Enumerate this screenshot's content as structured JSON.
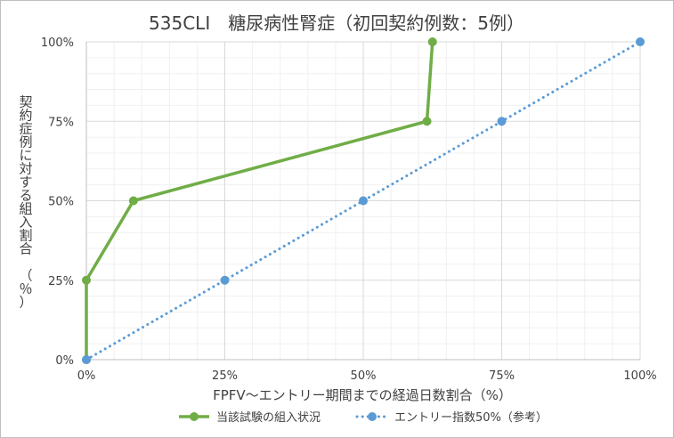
{
  "chart_data": {
    "type": "line",
    "title": "535CLI　糖尿病性腎症（初回契約例数：5例）",
    "xlabel": "FPFV～エントリー期間までの経過日数割合（%）",
    "ylabel": "契約症例に対する組入割合　（％）",
    "xlim": [
      0,
      100
    ],
    "ylim": [
      0,
      100
    ],
    "x_ticks": [
      0,
      25,
      50,
      75,
      100
    ],
    "y_ticks": [
      0,
      25,
      50,
      75,
      100
    ],
    "x_tick_labels": [
      "0%",
      "25%",
      "50%",
      "75%",
      "100%"
    ],
    "y_tick_labels": [
      "0%",
      "25%",
      "50%",
      "75%",
      "100%"
    ],
    "grid": true,
    "legend_position": "bottom",
    "series": [
      {
        "name": "当該試験の組入状況",
        "color": "#70ad47",
        "style": "solid",
        "x": [
          0,
          0,
          8.5,
          61.5,
          62.5
        ],
        "y": [
          0,
          25,
          50,
          75,
          100
        ]
      },
      {
        "name": "エントリー指数50%（参考）",
        "color": "#5b9bd5",
        "style": "dotted",
        "x": [
          0,
          25,
          50,
          75,
          100
        ],
        "y": [
          0,
          25,
          50,
          75,
          100
        ]
      }
    ]
  }
}
